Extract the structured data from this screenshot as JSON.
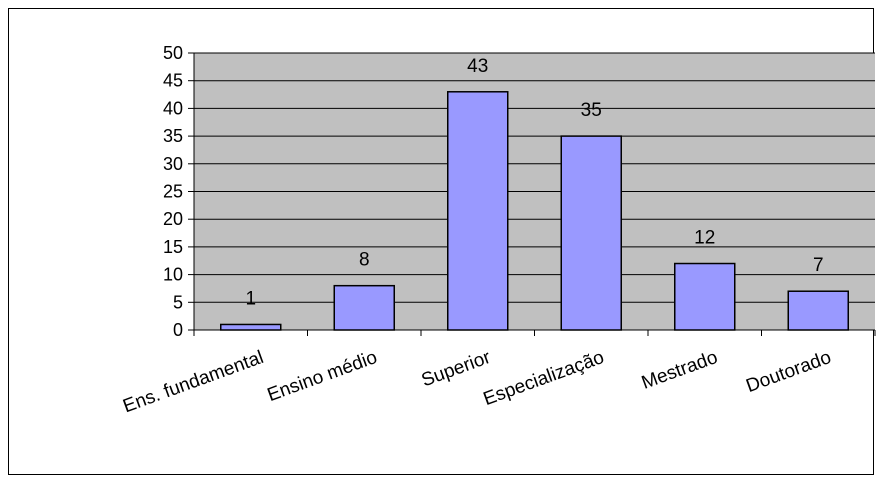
{
  "chart_data": {
    "type": "bar",
    "categories": [
      "Ens. fundamental",
      "Ensino  médio",
      "Superior",
      "Especialização",
      "Mestrado",
      "Doutorado"
    ],
    "values": [
      1,
      8,
      43,
      35,
      12,
      7
    ],
    "data_labels": [
      "1",
      "8",
      "43",
      "35",
      "12",
      "7"
    ],
    "title": "",
    "xlabel": "",
    "ylabel": "",
    "ylim": [
      0,
      50
    ],
    "ytick_step": 5,
    "grid": true,
    "legend": "none",
    "colors": {
      "plot_background": "#c0c0c0",
      "bar_fill": "#9999ff",
      "bar_stroke": "#000000",
      "gridline": "#000000"
    }
  }
}
